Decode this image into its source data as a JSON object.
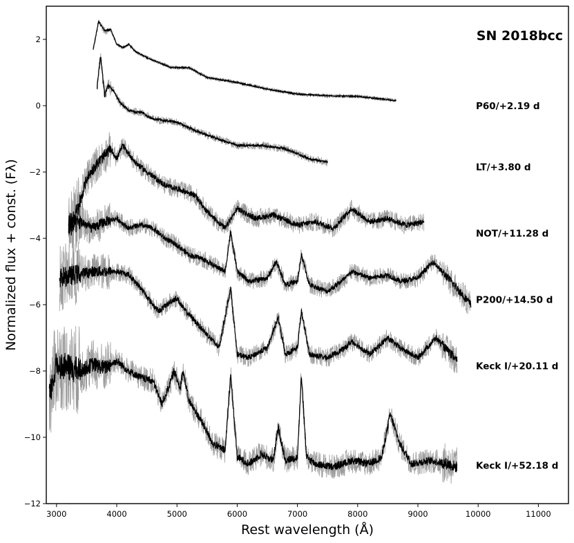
{
  "chart_data": {
    "type": "line",
    "title": "SN 2018bcc",
    "xlabel": "Rest wavelength (Å)",
    "ylabel": "Normalized flux + const. (Fλ)",
    "xlim": [
      2830,
      11500
    ],
    "ylim": [
      -12,
      3
    ],
    "xticks": [
      3000,
      4000,
      5000,
      6000,
      7000,
      8000,
      9000,
      10000,
      11000
    ],
    "yticks": [
      2,
      0,
      -2,
      -4,
      -6,
      -8,
      -10,
      -12
    ],
    "tick_labels_x": [
      "3000",
      "4000",
      "5000",
      "6000",
      "7000",
      "8000",
      "9000",
      "10000",
      "11000"
    ],
    "tick_labels_y": [
      "2",
      "0",
      "−2",
      "−4",
      "−6",
      "−8",
      "−10",
      "−12"
    ],
    "grid": false,
    "raw_color": "#9a9a9a",
    "smooth_color": "#000000",
    "series": [
      {
        "name": "P60/+2.19 d",
        "label_y": -0.1,
        "x": [
          3610,
          3700,
          3800,
          3900,
          4000,
          4100,
          4200,
          4300,
          4400,
          4500,
          4700,
          4900,
          5200,
          5500,
          6000,
          6500,
          7000,
          7500,
          8000,
          8300,
          8640
        ],
        "y": [
          1.7,
          2.55,
          2.25,
          2.3,
          1.85,
          1.75,
          1.85,
          1.65,
          1.55,
          1.45,
          1.3,
          1.15,
          1.15,
          0.85,
          0.7,
          0.5,
          0.35,
          0.3,
          0.28,
          0.22,
          0.15
        ]
      },
      {
        "name": "LT/+3.80 d",
        "label_y": -1.95,
        "x": [
          3670,
          3730,
          3800,
          3850,
          3950,
          4050,
          4200,
          4400,
          4600,
          4800,
          5000,
          5300,
          5600,
          6000,
          6400,
          6800,
          7200,
          7500
        ],
        "y": [
          0.5,
          1.5,
          0.3,
          0.6,
          0.45,
          0.1,
          -0.15,
          -0.2,
          -0.4,
          -0.45,
          -0.5,
          -0.75,
          -0.95,
          -1.2,
          -1.2,
          -1.3,
          -1.6,
          -1.7
        ]
      },
      {
        "name": "NOT/+11.28 d",
        "label_y": -3.95,
        "x": [
          3200,
          3350,
          3500,
          3650,
          3800,
          3900,
          4000,
          4100,
          4300,
          4500,
          4800,
          5000,
          5300,
          5500,
          5800,
          6000,
          6300,
          6600,
          7000,
          7300,
          7600,
          7900,
          8200,
          8500,
          8800,
          9100
        ],
        "y": [
          -3.6,
          -3.2,
          -2.2,
          -1.8,
          -1.5,
          -1.3,
          -1.6,
          -1.2,
          -1.7,
          -2.0,
          -2.4,
          -2.5,
          -2.7,
          -3.2,
          -3.7,
          -3.1,
          -3.4,
          -3.3,
          -3.6,
          -3.5,
          -3.7,
          -3.1,
          -3.5,
          -3.4,
          -3.6,
          -3.5
        ]
      },
      {
        "name": "P200/+14.50 d",
        "label_y": -5.95,
        "x": [
          3200,
          3400,
          3600,
          3800,
          4000,
          4200,
          4400,
          4600,
          4800,
          5000,
          5200,
          5400,
          5600,
          5800,
          5890,
          6000,
          6200,
          6500,
          6650,
          6800,
          7000,
          7065,
          7200,
          7500,
          7800,
          7900,
          8200,
          8500,
          8700,
          9000,
          9250,
          9600,
          9880
        ],
        "y": [
          -3.7,
          -3.5,
          -3.7,
          -3.5,
          -3.4,
          -3.7,
          -3.6,
          -3.7,
          -4.0,
          -4.2,
          -4.5,
          -4.6,
          -4.8,
          -5.0,
          -3.8,
          -5.0,
          -5.3,
          -5.2,
          -4.7,
          -5.4,
          -5.3,
          -4.5,
          -5.4,
          -5.6,
          -5.2,
          -5.0,
          -5.2,
          -5.1,
          -5.3,
          -5.2,
          -4.7,
          -5.4,
          -6.0
        ]
      },
      {
        "name": "Keck I/+20.11 d",
        "label_y": -7.95,
        "x": [
          3050,
          3300,
          3600,
          3800,
          4000,
          4200,
          4400,
          4600,
          4700,
          4900,
          5000,
          5100,
          5300,
          5500,
          5700,
          5890,
          6000,
          6200,
          6500,
          6680,
          6800,
          7000,
          7065,
          7200,
          7500,
          7800,
          7900,
          8200,
          8500,
          8700,
          9000,
          9300,
          9650
        ],
        "y": [
          -5.2,
          -5.1,
          -5.0,
          -5.0,
          -5.0,
          -5.1,
          -5.5,
          -6.0,
          -6.2,
          -5.9,
          -5.8,
          -6.1,
          -6.5,
          -6.9,
          -7.3,
          -5.5,
          -7.5,
          -7.6,
          -7.3,
          -6.4,
          -7.5,
          -7.3,
          -6.2,
          -7.5,
          -7.6,
          -7.3,
          -7.1,
          -7.5,
          -7.0,
          -7.3,
          -7.6,
          -7.0,
          -7.7
        ]
      },
      {
        "name": "Keck I/+52.18 d",
        "label_y": -10.95,
        "x": [
          2880,
          3000,
          3200,
          3400,
          3600,
          3800,
          4000,
          4200,
          4400,
          4600,
          4750,
          4900,
          4950,
          5050,
          5100,
          5200,
          5400,
          5600,
          5800,
          5890,
          6000,
          6200,
          6400,
          6600,
          6680,
          6800,
          7000,
          7065,
          7150,
          7300,
          7600,
          7900,
          8200,
          8400,
          8540,
          8700,
          8900,
          9200,
          9500,
          9650
        ],
        "y": [
          -8.8,
          -7.8,
          -7.9,
          -8.0,
          -7.8,
          -7.9,
          -7.7,
          -8.0,
          -8.2,
          -8.3,
          -9.0,
          -8.3,
          -8.0,
          -8.5,
          -8.0,
          -8.9,
          -9.5,
          -10.2,
          -10.4,
          -8.1,
          -10.6,
          -10.8,
          -10.5,
          -10.7,
          -9.7,
          -10.7,
          -10.6,
          -8.1,
          -10.6,
          -10.8,
          -10.9,
          -10.7,
          -10.8,
          -10.6,
          -9.3,
          -10.2,
          -10.8,
          -10.7,
          -10.8,
          -10.9
        ]
      }
    ]
  }
}
